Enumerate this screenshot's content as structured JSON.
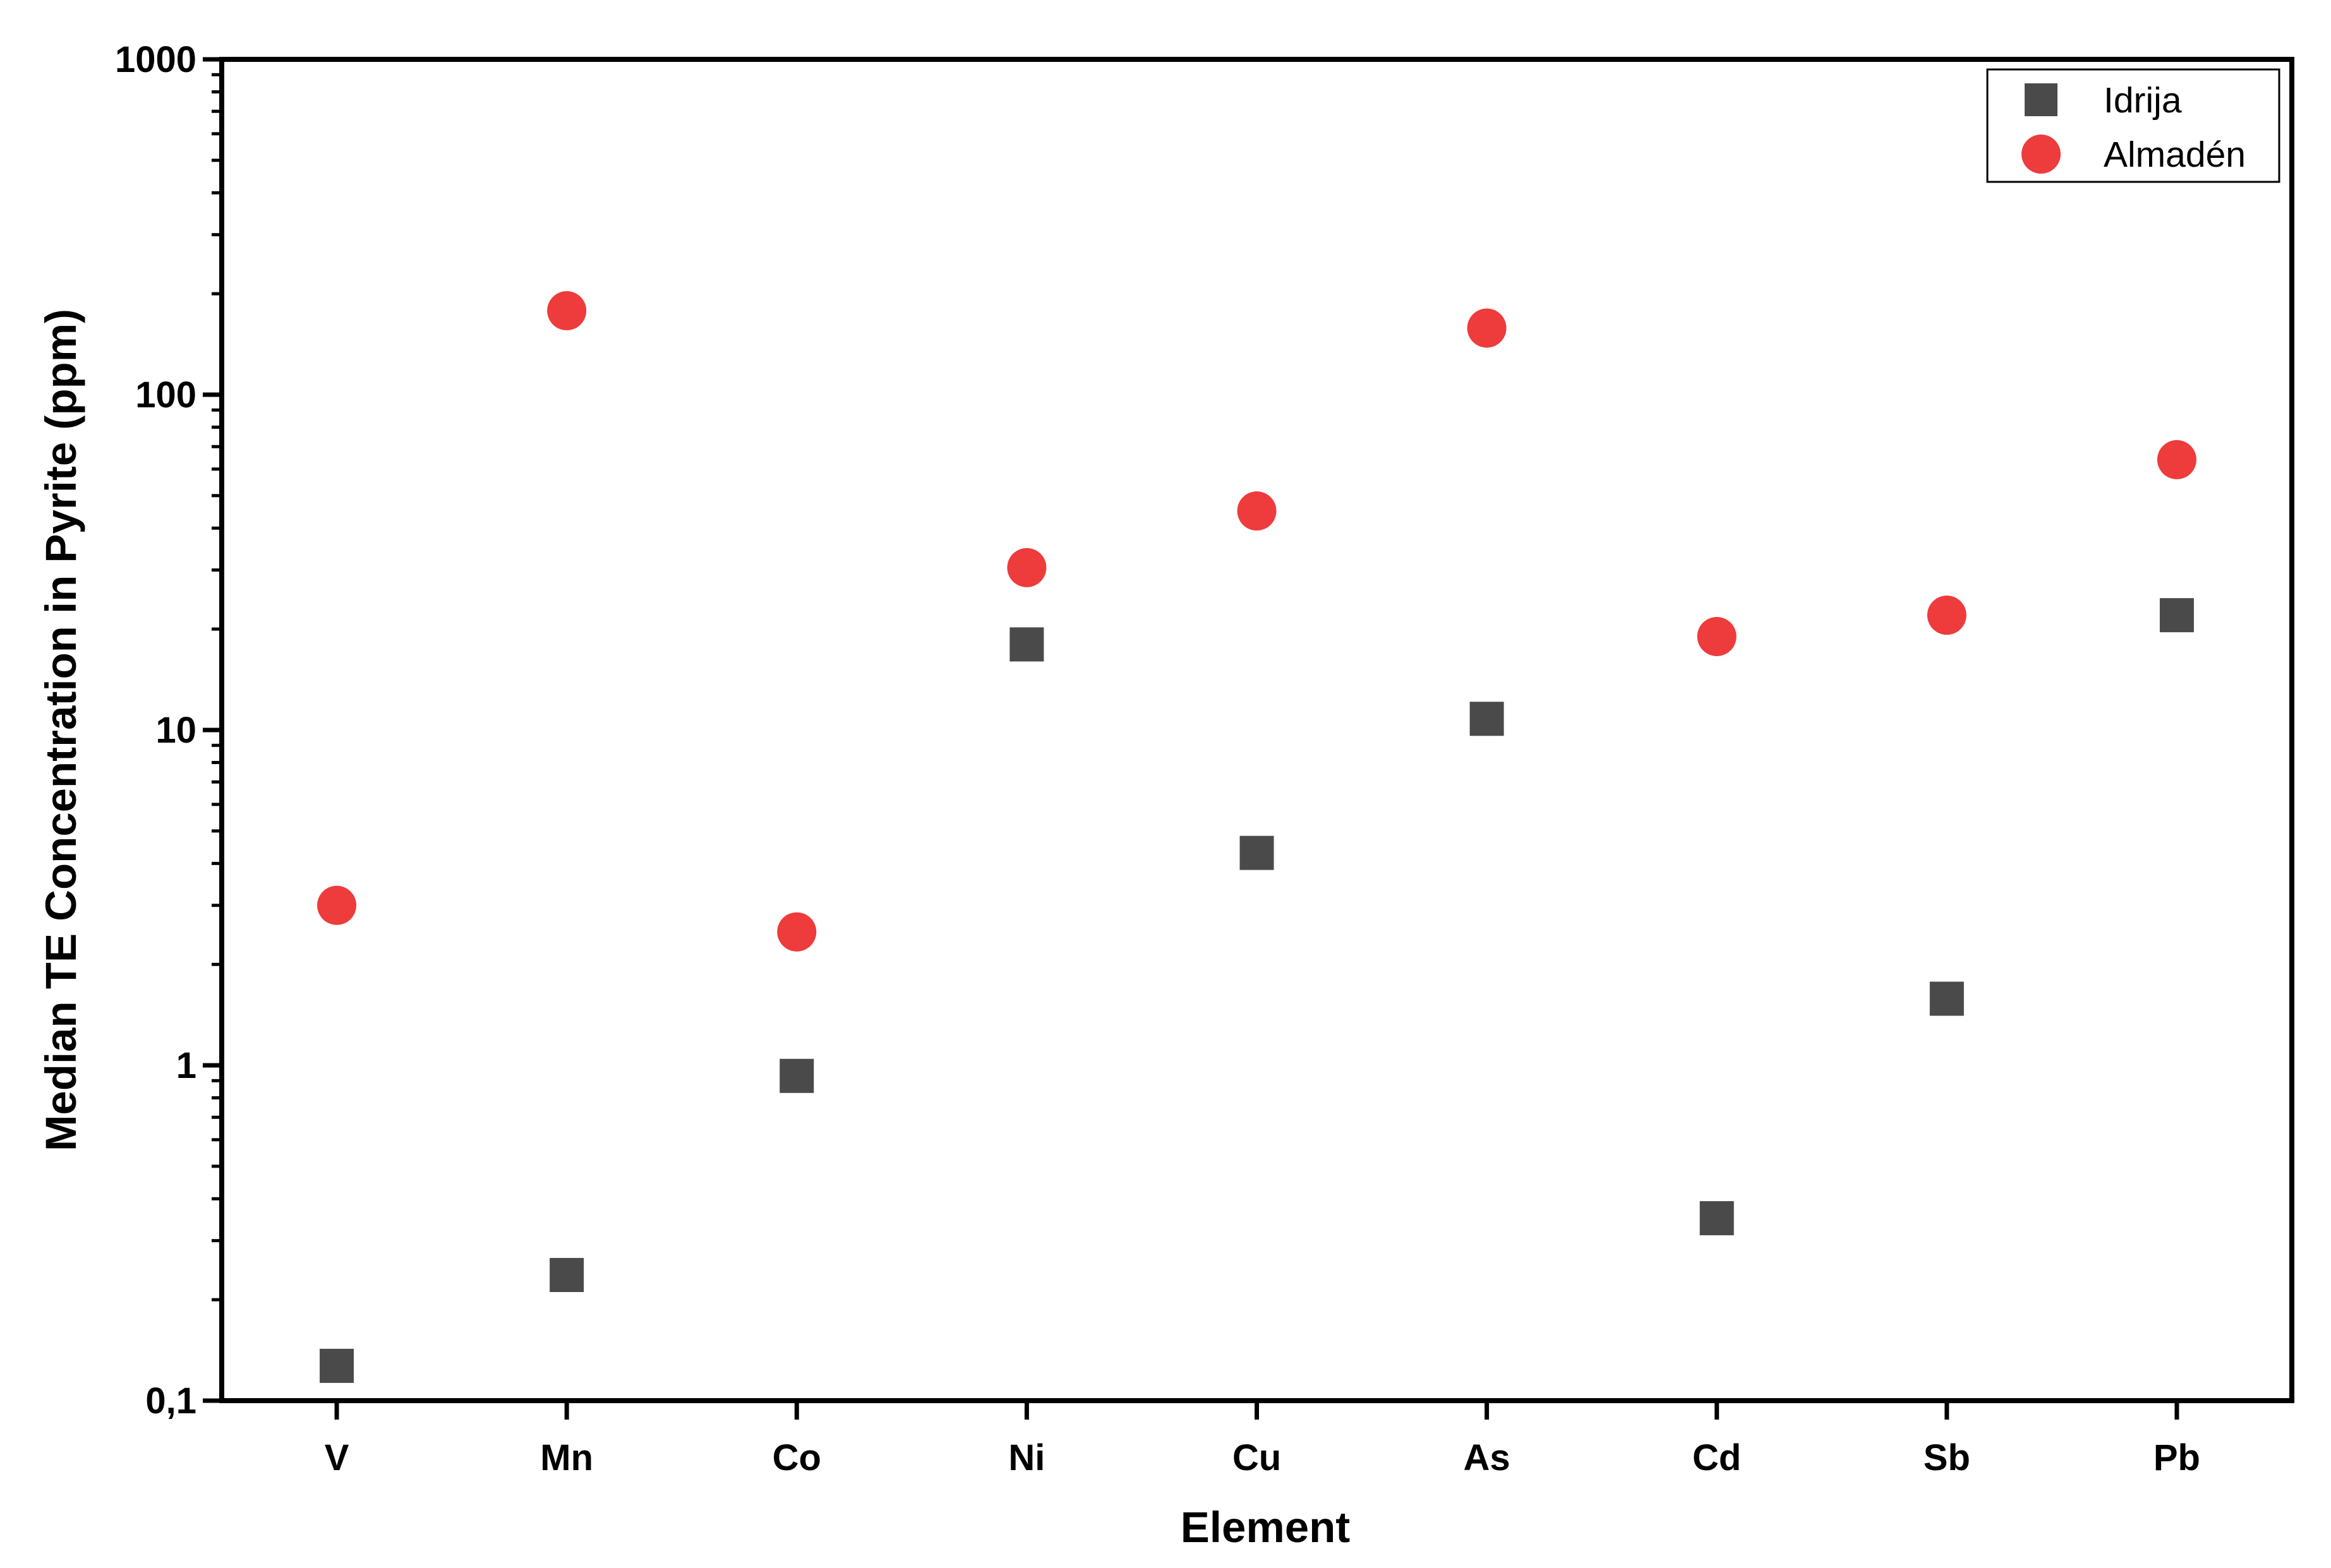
{
  "chart_data": {
    "type": "scatter",
    "title": "",
    "xlabel": "Element",
    "ylabel": "Median TE Concentration in Pyrite (ppm)",
    "categories": [
      "V",
      "Mn",
      "Co",
      "Ni",
      "Cu",
      "As",
      "Cd",
      "Sb",
      "Pb"
    ],
    "y_scale": "log",
    "ylim": [
      0.1,
      1000
    ],
    "y_ticks": [
      0.1,
      1,
      10,
      100,
      1000
    ],
    "y_tick_labels": [
      "0,1",
      "1",
      "10",
      "100",
      "1000"
    ],
    "grid": false,
    "legend_position": "top-right",
    "series": [
      {
        "name": "Idrija",
        "marker": "square",
        "color": "#4a4a4a",
        "values": [
          0.127,
          0.237,
          0.93,
          18,
          4.3,
          10.8,
          0.35,
          1.58,
          22
        ]
      },
      {
        "name": "Almadén",
        "marker": "circle",
        "color": "#ee3b3b",
        "values": [
          3.0,
          178,
          2.5,
          30.5,
          45,
          158,
          19,
          22,
          64
        ]
      }
    ]
  }
}
